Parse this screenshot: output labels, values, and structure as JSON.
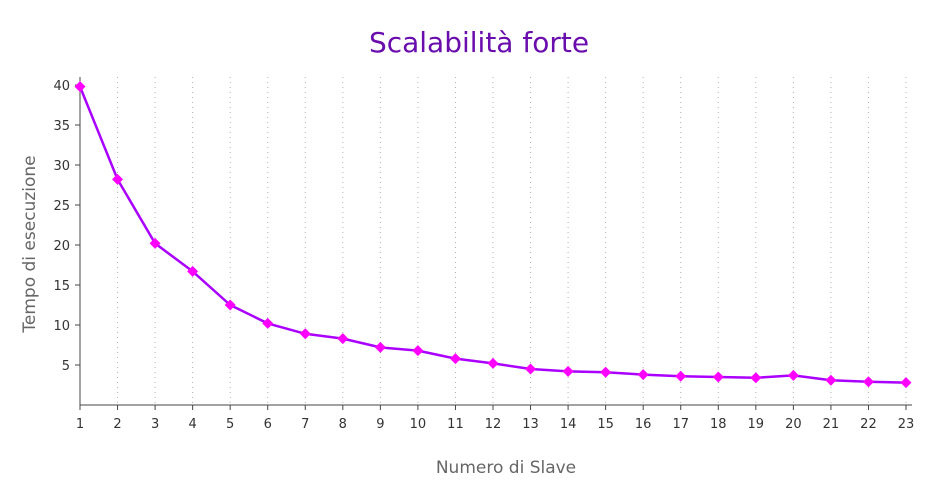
{
  "chart_data": {
    "type": "line",
    "title": "Scalabilità forte",
    "xlabel": "Numero di Slave",
    "ylabel": "Tempo di esecuzione",
    "x": [
      1,
      2,
      3,
      4,
      5,
      6,
      7,
      8,
      9,
      10,
      11,
      12,
      13,
      14,
      15,
      16,
      17,
      18,
      19,
      20,
      21,
      22,
      23
    ],
    "series": [
      {
        "values": [
          39.8,
          28.2,
          20.2,
          16.7,
          12.5,
          10.2,
          8.9,
          8.3,
          7.2,
          6.8,
          5.8,
          5.2,
          4.5,
          4.2,
          4.1,
          3.8,
          3.6,
          3.5,
          3.4,
          3.7,
          3.1,
          2.9,
          2.8
        ]
      }
    ],
    "xlim": [
      1,
      23
    ],
    "ylim": [
      0,
      40
    ],
    "yticks": [
      5,
      10,
      15,
      20,
      25,
      30,
      35,
      40
    ],
    "grid": "x-dotted",
    "colors": {
      "line": "#aa00ff",
      "marker": "#ff00ff",
      "title": "#6a0dad"
    }
  }
}
